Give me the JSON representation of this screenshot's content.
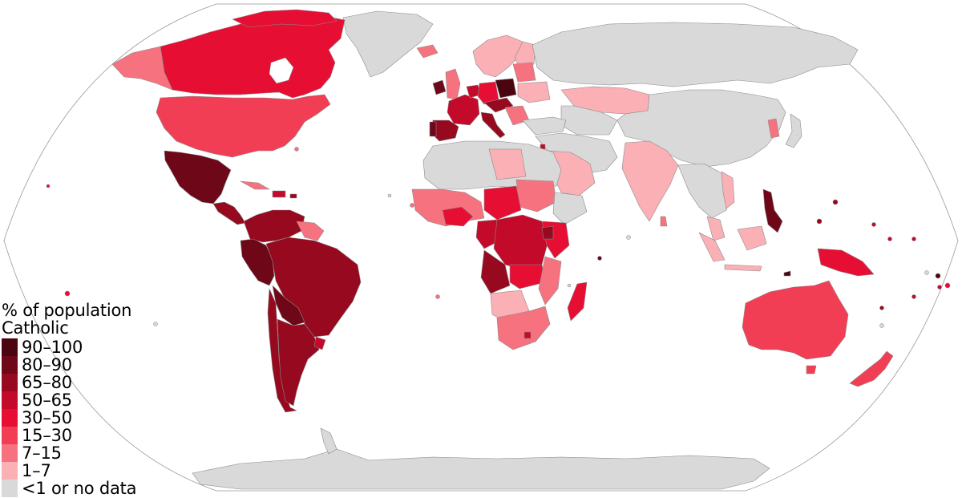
{
  "map": {
    "colors": {
      "90-100": "#4a0511",
      "80-90": "#6e0717",
      "65-80": "#96091f",
      "50-65": "#c40a2a",
      "30-50": "#e60f33",
      "15-30": "#f23e55",
      "7-15": "#f7727f",
      "1-7": "#fbb0b6",
      "none": "#d9d9d9",
      "ocean": "#ffffff",
      "border": "#8a8a8a"
    }
  },
  "legend": {
    "title_line1": "% of population",
    "title_line2": "Catholic",
    "items": [
      {
        "label": "90–100",
        "color": "#4a0511"
      },
      {
        "label": "80–90",
        "color": "#6e0717"
      },
      {
        "label": "65–80",
        "color": "#96091f"
      },
      {
        "label": "50–65",
        "color": "#c40a2a"
      },
      {
        "label": "30–50",
        "color": "#e60f33"
      },
      {
        "label": "15–30",
        "color": "#f23e55"
      },
      {
        "label": "7–15",
        "color": "#f7727f"
      },
      {
        "label": "1–7",
        "color": "#fbb0b6"
      },
      {
        "label": "<1 or no data",
        "color": "#d9d9d9"
      }
    ]
  }
}
